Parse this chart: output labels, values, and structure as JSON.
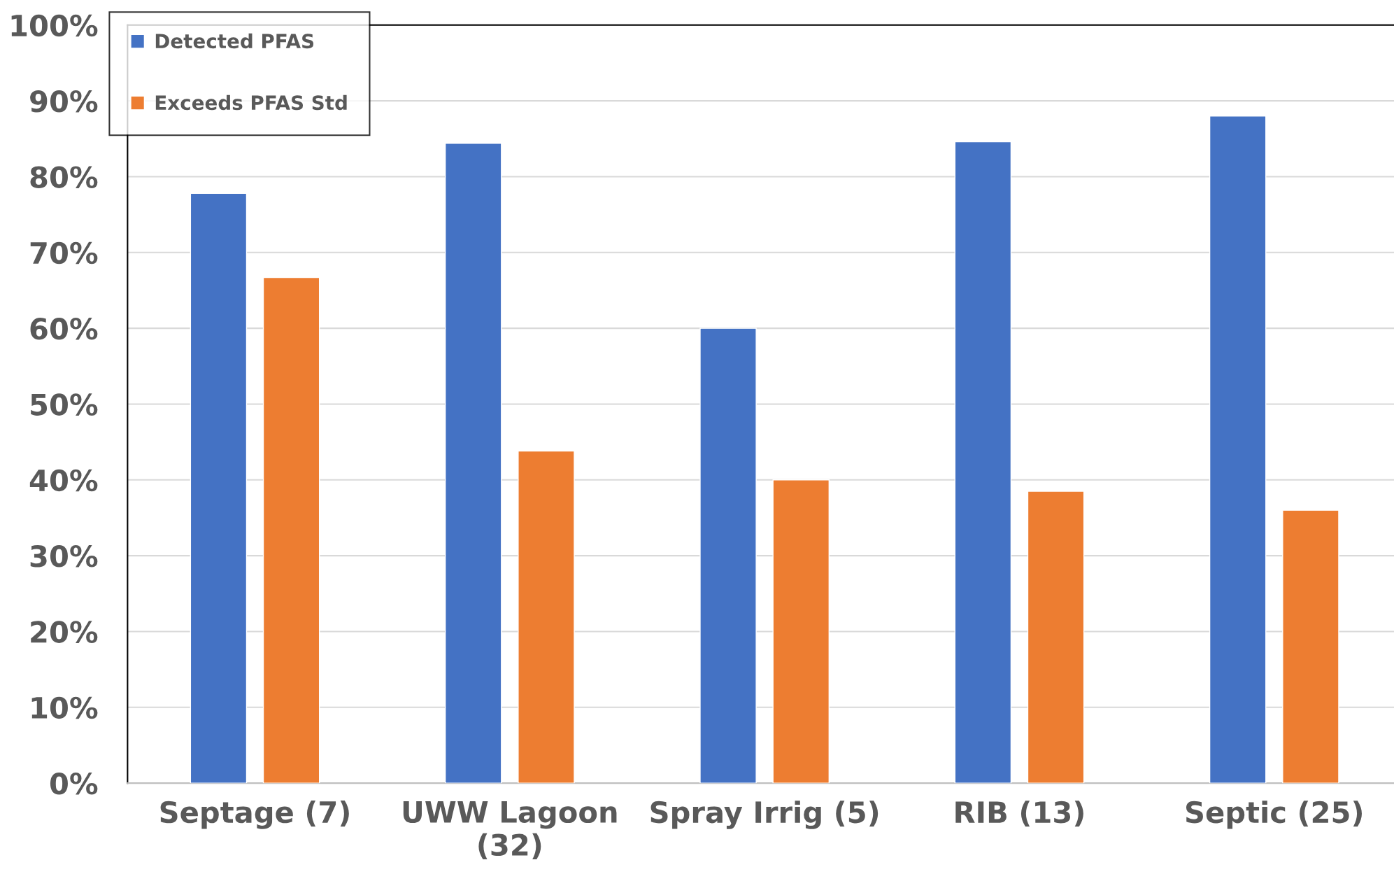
{
  "chart_data": {
    "type": "bar",
    "categories": [
      "Septage (7)",
      "UWW Lagoon\n(32)",
      "Spray Irrig (5)",
      "RIB (13)",
      "Septic (25)"
    ],
    "series": [
      {
        "name": "Detected PFAS",
        "color": "#4472c4",
        "values": [
          77.8,
          84.4,
          60,
          84.6,
          88
        ]
      },
      {
        "name": "Exceeds PFAS Std",
        "color": "#ed7d31",
        "values": [
          66.7,
          43.8,
          40,
          38.5,
          36
        ]
      }
    ],
    "ylim": [
      0,
      100
    ],
    "yticks": [
      {
        "value": 0,
        "label": "0%"
      },
      {
        "value": 10,
        "label": "10%"
      },
      {
        "value": 20,
        "label": "20%"
      },
      {
        "value": 30,
        "label": "30%"
      },
      {
        "value": 40,
        "label": "40%"
      },
      {
        "value": 50,
        "label": "50%"
      },
      {
        "value": 60,
        "label": "60%"
      },
      {
        "value": 70,
        "label": "70%"
      },
      {
        "value": 80,
        "label": "80%"
      },
      {
        "value": 90,
        "label": "90%"
      },
      {
        "value": 100,
        "label": "100%"
      }
    ],
    "grid": "y",
    "legend": "top left"
  }
}
